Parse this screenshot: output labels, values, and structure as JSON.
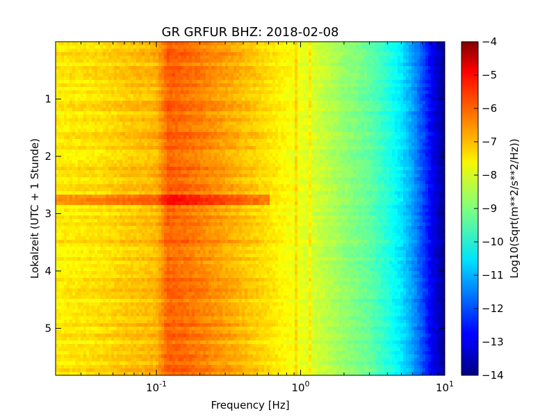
{
  "chart_data": {
    "type": "heatmap",
    "title": "GR GRFUR BHZ: 2018-02-08",
    "xlabel": "Frequency [Hz]",
    "ylabel": "Lokalzeit (UTC + 1 Stunde)",
    "x_scale": "log",
    "xlim": [
      0.02,
      10
    ],
    "x_ticks": [
      {
        "value": 0.1,
        "base": "10",
        "exp": "-1"
      },
      {
        "value": 1,
        "base": "10",
        "exp": "0"
      },
      {
        "value": 10,
        "base": "10",
        "exp": "1"
      }
    ],
    "ylim": [
      0,
      5.82
    ],
    "y_inverted": true,
    "y_ticks": [
      {
        "value": 1,
        "label": "1"
      },
      {
        "value": 2,
        "label": "2"
      },
      {
        "value": 3,
        "label": "3"
      },
      {
        "value": 4,
        "label": "4"
      },
      {
        "value": 5,
        "label": "5"
      }
    ],
    "colorbar": {
      "label": "Log10(Sqrt(m**2/s**2/Hz))",
      "colormap": "jet",
      "range": [
        -14,
        -4
      ],
      "ticks": [
        {
          "value": -4,
          "label": "−4"
        },
        {
          "value": -5,
          "label": "−5"
        },
        {
          "value": -6,
          "label": "−6"
        },
        {
          "value": -7,
          "label": "−7"
        },
        {
          "value": -8,
          "label": "−8"
        },
        {
          "value": -9,
          "label": "−9"
        },
        {
          "value": -10,
          "label": "−10"
        },
        {
          "value": -11,
          "label": "−11"
        },
        {
          "value": -12,
          "label": "−12"
        },
        {
          "value": -13,
          "label": "−13"
        },
        {
          "value": -14,
          "label": "−14"
        }
      ]
    },
    "spectrum_profile": {
      "frequency_hz": [
        0.02,
        0.04,
        0.06,
        0.1,
        0.12,
        0.15,
        0.2,
        0.3,
        0.5,
        0.8,
        1,
        1.5,
        2,
        3,
        4,
        5,
        6,
        7,
        8,
        10
      ],
      "log10_amplitude": [
        -7.6,
        -7.45,
        -7.25,
        -7.05,
        -6.2,
        -6.3,
        -6.5,
        -6.85,
        -7.3,
        -7.75,
        -7.95,
        -8.4,
        -8.8,
        -9.3,
        -9.9,
        -10.5,
        -11.2,
        -12.0,
        -12.8,
        -13.8
      ]
    },
    "events": [
      {
        "time_hours": [
          2.68,
          2.82
        ],
        "frequency_hz": [
          0.02,
          0.6
        ],
        "delta_log10": 0.8
      }
    ],
    "narrow_lines_hz": [
      0.92,
      1.17
    ]
  }
}
